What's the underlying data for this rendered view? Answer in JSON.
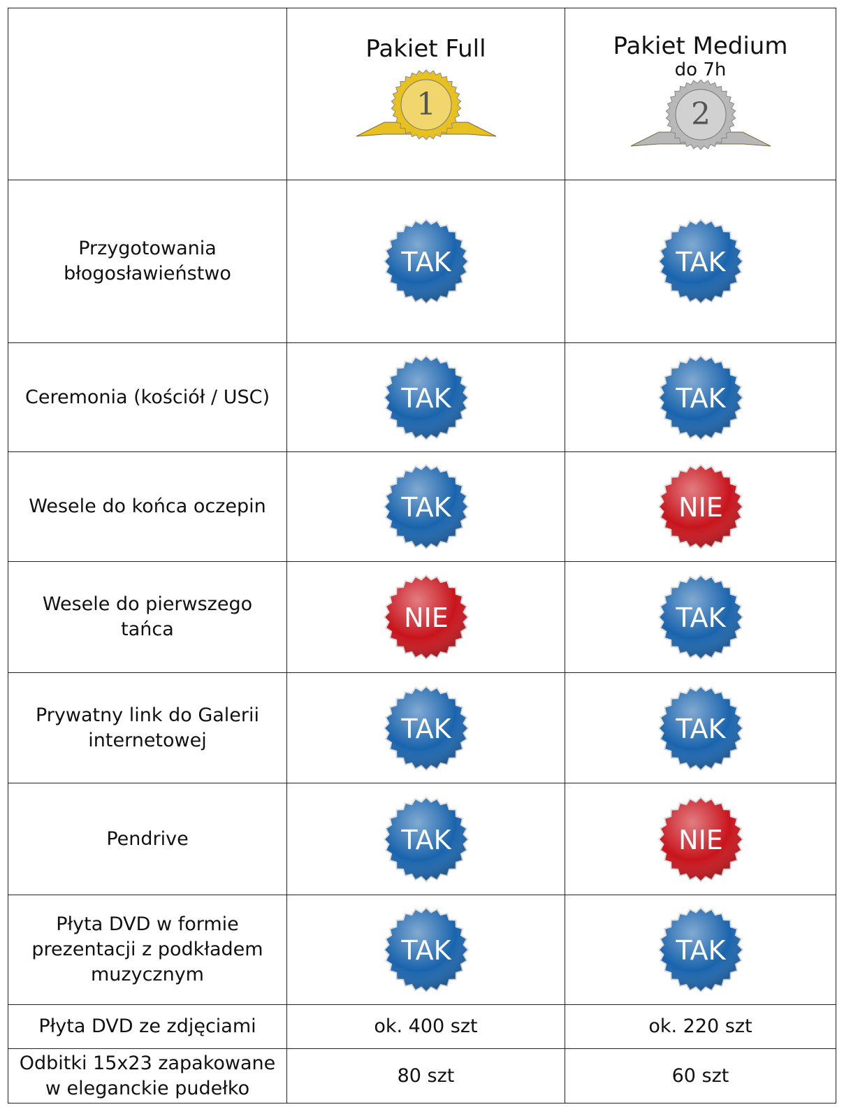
{
  "header": {
    "columns": [
      {
        "title": "Pakiet Full",
        "medal": "1",
        "medal_color": "#e8c020"
      },
      {
        "title": "Pakiet Medium",
        "subtitle": "do 7h",
        "medal": "2",
        "medal_color": "#b8b8b8"
      }
    ]
  },
  "table": {
    "rows": [
      {
        "label": "Przygotowania błogosławieństwo",
        "cells": [
          {
            "text": "TAK",
            "color": "#1a64ad"
          },
          {
            "text": "TAK",
            "color": "#1a64ad"
          }
        ]
      },
      {
        "label": "Ceremonia (kościół / USC)",
        "cells": [
          {
            "text": "TAK",
            "color": "#1a64ad"
          },
          {
            "text": "TAK",
            "color": "#1a64ad"
          }
        ]
      },
      {
        "label": "Wesele do  końca oczepin",
        "cells": [
          {
            "text": "TAK",
            "color": "#1a64ad"
          },
          {
            "text": "NIE",
            "color": "#c8141c"
          }
        ]
      },
      {
        "label": "Wesele do pierwszego tańca",
        "cells": [
          {
            "text": "NIE",
            "color": "#c8141c"
          },
          {
            "text": "TAK",
            "color": "#1a64ad"
          }
        ]
      },
      {
        "label": "Prywatny link do Galerii internetowej",
        "cells": [
          {
            "text": "TAK",
            "color": "#1a64ad"
          },
          {
            "text": "TAK",
            "color": "#1a64ad"
          }
        ]
      },
      {
        "label": "Pendrive",
        "cells": [
          {
            "text": "TAK",
            "color": "#1a64ad"
          },
          {
            "text": "NIE",
            "color": "#c8141c"
          }
        ]
      },
      {
        "label": "Płyta DVD w formie prezentacji z podkładem muzycznym",
        "cells": [
          {
            "text": "TAK",
            "color": "#1a64ad"
          },
          {
            "text": "TAK",
            "color": "#1a64ad"
          }
        ]
      },
      {
        "label": "Płyta DVD ze zdjęciami",
        "cells": [
          "ok. 400 szt",
          "ok. 220 szt"
        ]
      },
      {
        "label": "Odbitki 15x23 zapakowane w eleganckie pudełko",
        "cells": [
          "80 szt",
          "60 szt"
        ]
      }
    ]
  }
}
